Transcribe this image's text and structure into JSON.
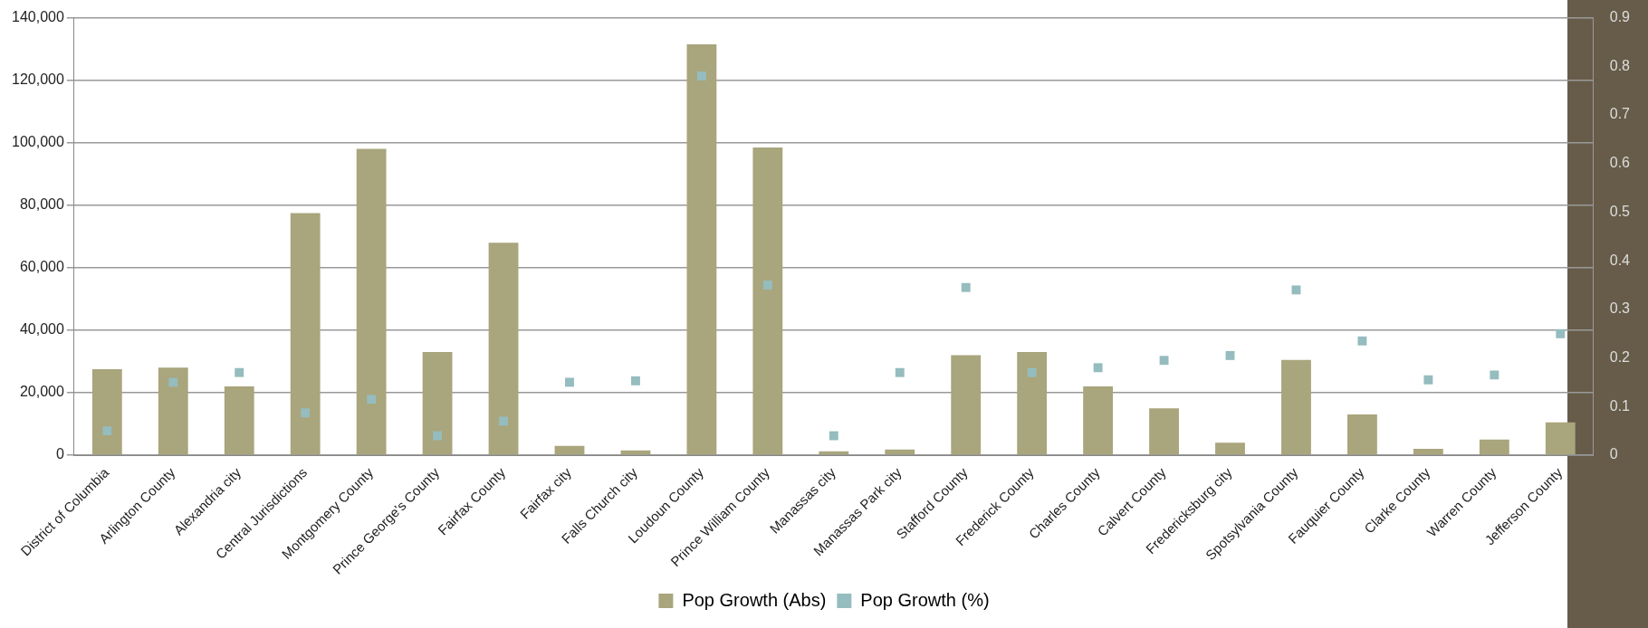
{
  "chart_data": {
    "type": "bar",
    "categories": [
      "District of Columbia",
      "Arlington County",
      "Alexandria city",
      "Central Jurisdictions",
      "Montgomery County",
      "Prince George's County",
      "Fairfax County",
      "Fairfax city",
      "Falls Church city",
      "Loudoun County",
      "Prince William County",
      "Manassas city",
      "Manassas Park city",
      "Stafford County",
      "Frederick County",
      "Charles County",
      "Calvert County",
      "Fredericksburg city",
      "Spotsylvania County",
      "Fauquier County",
      "Clarke County",
      "Warren County",
      "Jefferson County"
    ],
    "series": [
      {
        "name": "Pop Growth (Abs)",
        "color": "#a9a57c",
        "values": [
          27500,
          28000,
          22000,
          77500,
          98000,
          33000,
          68000,
          3000,
          1500,
          131500,
          98500,
          1200,
          1800,
          32000,
          33000,
          22000,
          15000,
          4000,
          30500,
          13000,
          2000,
          5000,
          10500
        ]
      },
      {
        "name": "Pop Growth (%)",
        "type": "scatter",
        "axis": "y2",
        "x": [
          "District of Columbia",
          "Arlington County",
          "Alexandria city",
          "Central Jurisdictions",
          "Montgomery County",
          "Prince George's County",
          "Fairfax County",
          "Fairfax city",
          "Falls Church city",
          "Loudoun County",
          "Prince William County",
          "Manassas city",
          "Manassas Park city",
          "Stafford County",
          "Frederick County",
          "Charles County",
          "Calvert County",
          "Fredericksburg city",
          "Spotsylvania County",
          "Fauquier County",
          "Clarke County",
          "Warren County",
          "Jefferson County"
        ],
        "color": "#95bcbe",
        "values": [
          0.05,
          0.15,
          0.17,
          0.087,
          0.115,
          0.04,
          0.07,
          0.15,
          0.153,
          0.78,
          0.35,
          0.04,
          0.17,
          0.345,
          0.17,
          0.18,
          0.195,
          0.205,
          0.34,
          0.235,
          0.155,
          0.165,
          0.25
        ]
      }
    ],
    "ylim": [
      0,
      140000
    ],
    "yticks": [
      0,
      {
        "value": 20000,
        "label": "20,000"
      },
      {
        "value": 40000,
        "label": "40,000"
      },
      {
        "value": 60000,
        "label": "60,000"
      },
      {
        "value": 80000,
        "label": "80,000"
      },
      {
        "value": 100000,
        "label": "100,000"
      },
      {
        "value": 120000,
        "label": "120,000"
      },
      {
        "value": 140000,
        "label": "140,000"
      }
    ],
    "y2lim": [
      0,
      0.9
    ],
    "y2ticks": [
      0,
      0.1,
      0.2,
      0.3,
      0.4,
      0.5,
      0.6,
      0.7,
      0.8,
      0.9
    ],
    "grid": "y",
    "legend": "bottom",
    "marker": "square"
  }
}
